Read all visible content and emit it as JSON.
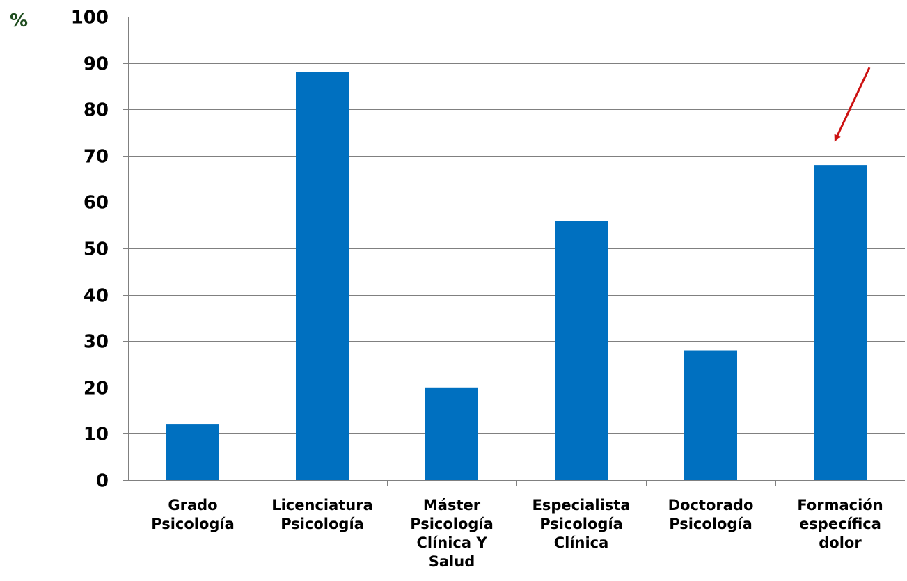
{
  "chart_data": {
    "type": "bar",
    "categories": [
      "Grado\nPsicología",
      "Licenciatura\nPsicología",
      "Máster\nPsicología\nClínica Y\nSalud",
      "Especialista\nPsicología\nClínica",
      "Doctorado\nPsicología",
      "Formación\nespecífica\ndolor"
    ],
    "values": [
      12,
      88,
      20,
      56,
      28,
      68
    ],
    "title": "",
    "xlabel": "",
    "ylabel": "%",
    "ylim": [
      0,
      100
    ],
    "yticks": [
      0,
      10,
      20,
      30,
      40,
      50,
      60,
      70,
      80,
      90,
      100
    ],
    "grid": true,
    "legend": "none",
    "annotations": [
      {
        "type": "arrow",
        "target_category": "Formación\nespecífica\ndolor",
        "color": "#cc1111"
      }
    ]
  },
  "colors": {
    "bar": "#0070c0",
    "ylabel": "#1f4d1f",
    "grid": "#808080",
    "axis": "#808080",
    "arrow": "#cc1111"
  }
}
